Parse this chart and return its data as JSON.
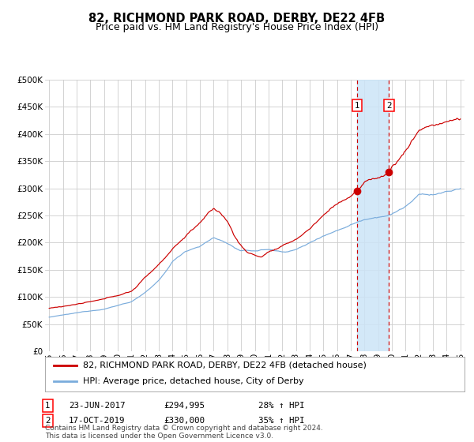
{
  "title": "82, RICHMOND PARK ROAD, DERBY, DE22 4FB",
  "subtitle": "Price paid vs. HM Land Registry's House Price Index (HPI)",
  "ylim": [
    0,
    500000
  ],
  "yticks": [
    0,
    50000,
    100000,
    150000,
    200000,
    250000,
    300000,
    350000,
    400000,
    450000,
    500000
  ],
  "ytick_labels": [
    "£0",
    "£50K",
    "£100K",
    "£150K",
    "£200K",
    "£250K",
    "£300K",
    "£350K",
    "£400K",
    "£450K",
    "£500K"
  ],
  "x_start_year": 1995,
  "x_end_year": 2025,
  "xtick_years": [
    1995,
    1996,
    1997,
    1998,
    1999,
    2000,
    2001,
    2002,
    2003,
    2004,
    2005,
    2006,
    2007,
    2008,
    2009,
    2010,
    2011,
    2012,
    2013,
    2014,
    2015,
    2016,
    2017,
    2018,
    2019,
    2020,
    2021,
    2022,
    2023,
    2024,
    2025
  ],
  "red_line_color": "#cc0000",
  "blue_line_color": "#7aacdc",
  "marker_color": "#cc0000",
  "grid_color": "#cccccc",
  "background_color": "#ffffff",
  "highlight_color": "#cce4f7",
  "vline_color": "#cc0000",
  "legend_label_red": "82, RICHMOND PARK ROAD, DERBY, DE22 4FB (detached house)",
  "legend_label_blue": "HPI: Average price, detached house, City of Derby",
  "sale1_date": 2017.47,
  "sale1_price": 294995,
  "sale2_date": 2019.79,
  "sale2_price": 330000,
  "annotation1_text": "23-JUN-2017",
  "annotation1_price": "£294,995",
  "annotation1_pct": "28% ↑ HPI",
  "annotation2_text": "17-OCT-2019",
  "annotation2_price": "£330,000",
  "annotation2_pct": "35% ↑ HPI",
  "footnote": "Contains HM Land Registry data © Crown copyright and database right 2024.\nThis data is licensed under the Open Government Licence v3.0.",
  "title_fontsize": 10.5,
  "subtitle_fontsize": 9,
  "tick_fontsize": 7.5,
  "legend_fontsize": 8,
  "footnote_fontsize": 6.5
}
